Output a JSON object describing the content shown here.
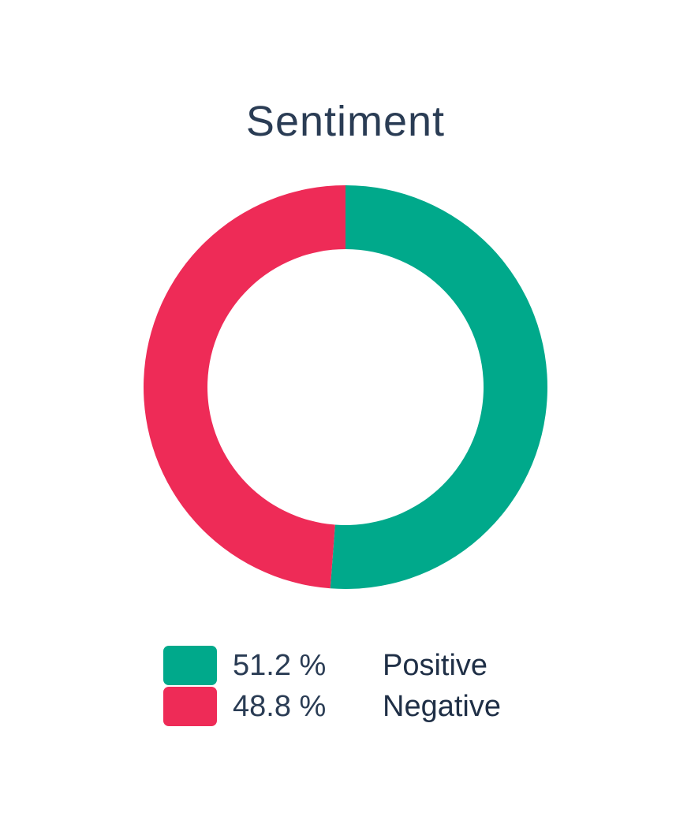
{
  "chart_data": {
    "type": "pie",
    "title": "Sentiment",
    "donut": true,
    "slices": [
      {
        "name": "Positive",
        "value": 51.2,
        "label": "51.2 %",
        "color": "#00a98b"
      },
      {
        "name": "Negative",
        "value": 48.8,
        "label": "48.8 %",
        "color": "#ee2b57"
      }
    ],
    "legend_position": "bottom"
  }
}
